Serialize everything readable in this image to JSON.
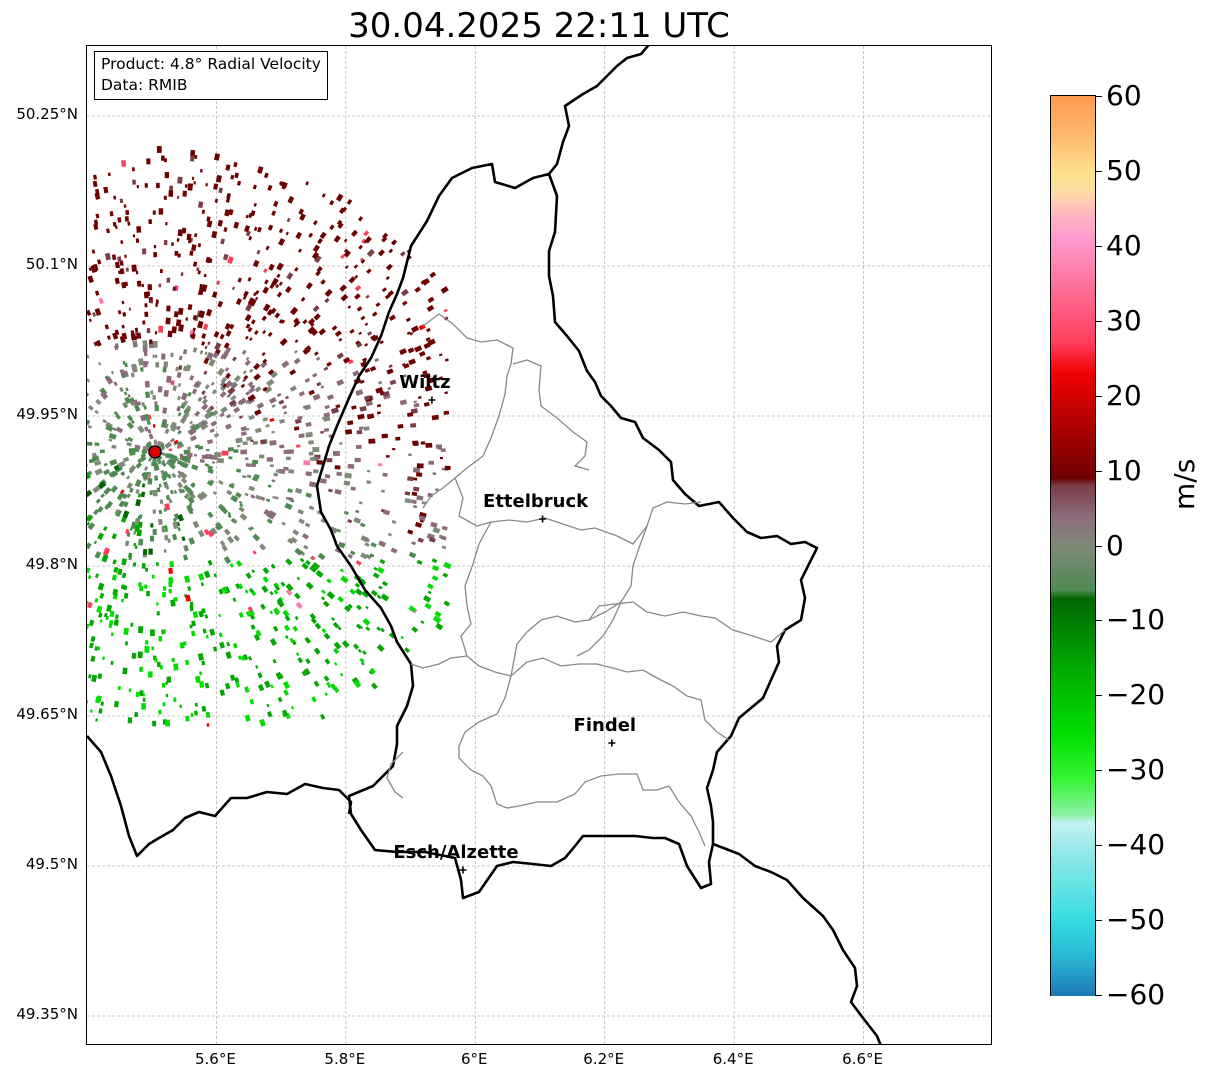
{
  "title": "30.04.2025 22:11 UTC",
  "info": {
    "product": "Product: 4.8° Radial Velocity",
    "data": "Data: RMIB"
  },
  "axes": {
    "lon_range": [
      5.4,
      6.8
    ],
    "lat_range": [
      49.32,
      50.32
    ],
    "lon_ticks": [
      5.6,
      5.8,
      6.0,
      6.2,
      6.4,
      6.6
    ],
    "lon_tick_labels": [
      "5.6°E",
      "5.8°E",
      "6°E",
      "6.2°E",
      "6.4°E",
      "6.6°E"
    ],
    "lat_ticks": [
      50.25,
      50.1,
      49.95,
      49.8,
      49.65,
      49.5,
      49.35
    ],
    "lat_tick_labels": [
      "50.25°N",
      "50.1°N",
      "49.95°N",
      "49.8°N",
      "49.65°N",
      "49.5°N",
      "49.35°N"
    ],
    "grid": true
  },
  "radar_site": {
    "lon": 5.505,
    "lat": 49.914,
    "color": "#e00000"
  },
  "cities": [
    {
      "name": "Wiltz",
      "lon": 5.933,
      "lat": 49.966
    },
    {
      "name": "Ettelbruck",
      "lon": 6.104,
      "lat": 49.847
    },
    {
      "name": "Findel",
      "lon": 6.211,
      "lat": 49.623
    },
    {
      "name": "Esch/Alzette",
      "lon": 5.981,
      "lat": 49.496
    }
  ],
  "colorbar": {
    "unit": "m/s",
    "range": [
      -60,
      60
    ],
    "ticks": [
      60,
      50,
      40,
      30,
      20,
      10,
      0,
      -10,
      -20,
      -30,
      -40,
      -50,
      -60
    ],
    "tick_labels": [
      "60",
      "50",
      "40",
      "30",
      "20",
      "10",
      "0",
      "−10",
      "−20",
      "−30",
      "−40",
      "−50",
      "−60"
    ],
    "stops": [
      {
        "v": -60,
        "c": "#1f78b4"
      },
      {
        "v": -55,
        "c": "#29b6d6"
      },
      {
        "v": -50,
        "c": "#33dde0"
      },
      {
        "v": -40,
        "c": "#9ee9ea"
      },
      {
        "v": -37,
        "c": "#c4f2f2"
      },
      {
        "v": -36,
        "c": "#8ff2a8"
      },
      {
        "v": -31,
        "c": "#33f533"
      },
      {
        "v": -25,
        "c": "#00dd00"
      },
      {
        "v": -16,
        "c": "#00a800"
      },
      {
        "v": -7,
        "c": "#006400"
      },
      {
        "v": -6,
        "c": "#4e8a52"
      },
      {
        "v": 0,
        "c": "#7f8a78"
      },
      {
        "v": 4,
        "c": "#8c6b7a"
      },
      {
        "v": 8,
        "c": "#7a3e48"
      },
      {
        "v": 9,
        "c": "#6e0000"
      },
      {
        "v": 18,
        "c": "#c00000"
      },
      {
        "v": 23,
        "c": "#f20000"
      },
      {
        "v": 27,
        "c": "#ff3d5a"
      },
      {
        "v": 36,
        "c": "#ff7aa6"
      },
      {
        "v": 41,
        "c": "#ff9bd0"
      },
      {
        "v": 44,
        "c": "#ffb3c2"
      },
      {
        "v": 47,
        "c": "#ffdca8"
      },
      {
        "v": 50,
        "c": "#ffe08a"
      },
      {
        "v": 54,
        "c": "#ffbf73"
      },
      {
        "v": 60,
        "c": "#ff9a4f"
      }
    ]
  }
}
